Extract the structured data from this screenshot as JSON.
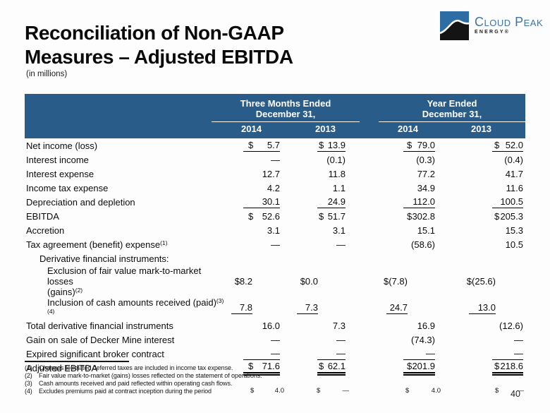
{
  "slide": {
    "title_line1": "Reconciliation of Non-GAAP",
    "title_line2": "Measures – Adjusted EBITDA",
    "subtitle": "(in millions)",
    "page_number": "40"
  },
  "logo": {
    "company_name": "Cloud Peak",
    "company_sub": "ENERGY®",
    "icon": "mountain-ridge-icon"
  },
  "colors": {
    "header_bg": "#2a5c8a",
    "logo_icon_blue": "#2e6da4",
    "logo_text_blue": "#3f73a2"
  },
  "table": {
    "header": {
      "groups": [
        {
          "line1": "Three Months Ended",
          "line2": "December 31,"
        },
        {
          "line1": "Year Ended",
          "line2": "December 31,"
        }
      ],
      "years": [
        "2014",
        "2013",
        "2014",
        "2013"
      ]
    },
    "rows": [
      {
        "label": "Net income (loss)",
        "values": [
          "$ 5.7",
          "$ 13.9",
          "$ 79.0",
          "$ 52.0"
        ],
        "underline": true
      },
      {
        "label": "Interest income",
        "values": [
          "—",
          "(0.1)",
          "(0.3)",
          "(0.4)"
        ]
      },
      {
        "label": "Interest expense",
        "values": [
          "12.7",
          "11.8",
          "77.2",
          "41.7"
        ]
      },
      {
        "label": "Income tax expense",
        "values": [
          "4.2",
          "1.1",
          "34.9",
          "11.6"
        ]
      },
      {
        "label": "Depreciation and depletion",
        "values": [
          "30.1",
          "24.9",
          "112.0",
          "100.5"
        ],
        "underline": true
      },
      {
        "label": "EBITDA",
        "values": [
          "$ 52.6",
          "$ 51.7",
          "$ 302.8",
          "$ 205.3"
        ]
      },
      {
        "label": "Accretion",
        "values": [
          "3.1",
          "3.1",
          "15.1",
          "15.3"
        ]
      },
      {
        "label": "Tax agreement (benefit) expense",
        "sup": "(1)",
        "values": [
          "—",
          "—",
          "(58.6)",
          "10.5"
        ]
      },
      {
        "label": "Derivative financial instruments:",
        "indent": 1,
        "values": [
          "",
          "",
          "",
          ""
        ]
      },
      {
        "label": "Exclusion of fair value mark-to-market losses",
        "label2": "(gains)",
        "sup": "(2)",
        "indent": 2,
        "shift": true,
        "values": [
          "$8.2",
          "$0.0",
          "$(7.8)",
          "$(25.6)"
        ]
      },
      {
        "label": "Inclusion of cash amounts received (paid)",
        "sup": "(3)(4)",
        "indent": 2,
        "shift": true,
        "underline": true,
        "values": [
          "7.8",
          "7.3",
          "24.7",
          "13.0"
        ]
      },
      {
        "label": "Total derivative financial instruments",
        "values": [
          "16.0",
          "7.3",
          "16.9",
          "(12.6)"
        ]
      },
      {
        "label": "Gain on sale of Decker Mine interest",
        "values": [
          "—",
          "—",
          "(74.3)",
          "—"
        ]
      },
      {
        "label": "Expired significant broker contract",
        "underline": true,
        "values": [
          "—",
          "—",
          "—",
          "—"
        ]
      },
      {
        "label": "Adjusted EBITDA",
        "double": true,
        "values": [
          "$ 71.6",
          "$ 62.1",
          "$ 201.9",
          "$ 218.6"
        ]
      }
    ]
  },
  "footnotes": [
    {
      "num": "(1)",
      "text": "Changes to related deferred taxes are included in income tax expense."
    },
    {
      "num": "(2)",
      "text": "Fair value mark-to-market (gains) losses reflected on the statement of operations."
    },
    {
      "num": "(3)",
      "text": "Cash amounts received and paid reflected within operating cash flows."
    },
    {
      "num": "(4)",
      "text": "Excludes premiums paid at contract inception during the period"
    }
  ],
  "footnote4_values": [
    {
      "currency": "$",
      "amount": "4.0"
    },
    {
      "currency": "$",
      "amount": "—"
    },
    {
      "currency": "$",
      "amount": "4.0"
    },
    {
      "currency": "$",
      "amount": "—"
    }
  ]
}
